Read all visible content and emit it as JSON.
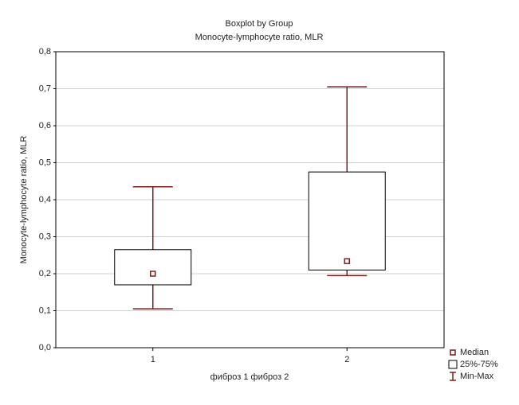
{
  "chart_data": {
    "type": "boxplot",
    "title": "Boxplot by Group",
    "subtitle": "Monocyte-lymphocyte ratio, MLR",
    "xlabel": "фиброз 1 фиброз 2",
    "ylabel": "Monocyte-lymphocyte ratio, MLR",
    "categories": [
      "1",
      "2"
    ],
    "min": [
      0.105,
      0.195
    ],
    "q1": [
      0.17,
      0.21
    ],
    "median": [
      0.2,
      0.234
    ],
    "q3": [
      0.265,
      0.475
    ],
    "max": [
      0.435,
      0.705
    ],
    "color": "#7b1e1e",
    "legend": [
      "Median",
      "25%-75%",
      "Min-Max"
    ],
    "ylim": [
      0,
      0.8
    ],
    "yticks": [
      {
        "value": 0,
        "label": "0,0"
      },
      {
        "value": 0.1,
        "label": "0,1"
      },
      {
        "value": 0.2,
        "label": "0,2"
      },
      {
        "value": 0.3,
        "label": "0,3"
      },
      {
        "value": 0.4,
        "label": "0,4"
      },
      {
        "value": 0.5,
        "label": "0,5"
      },
      {
        "value": 0.6,
        "label": "0,6"
      },
      {
        "value": 0.7,
        "label": "0,7"
      },
      {
        "value": 0.8,
        "label": "0,8"
      }
    ],
    "grid": true
  }
}
